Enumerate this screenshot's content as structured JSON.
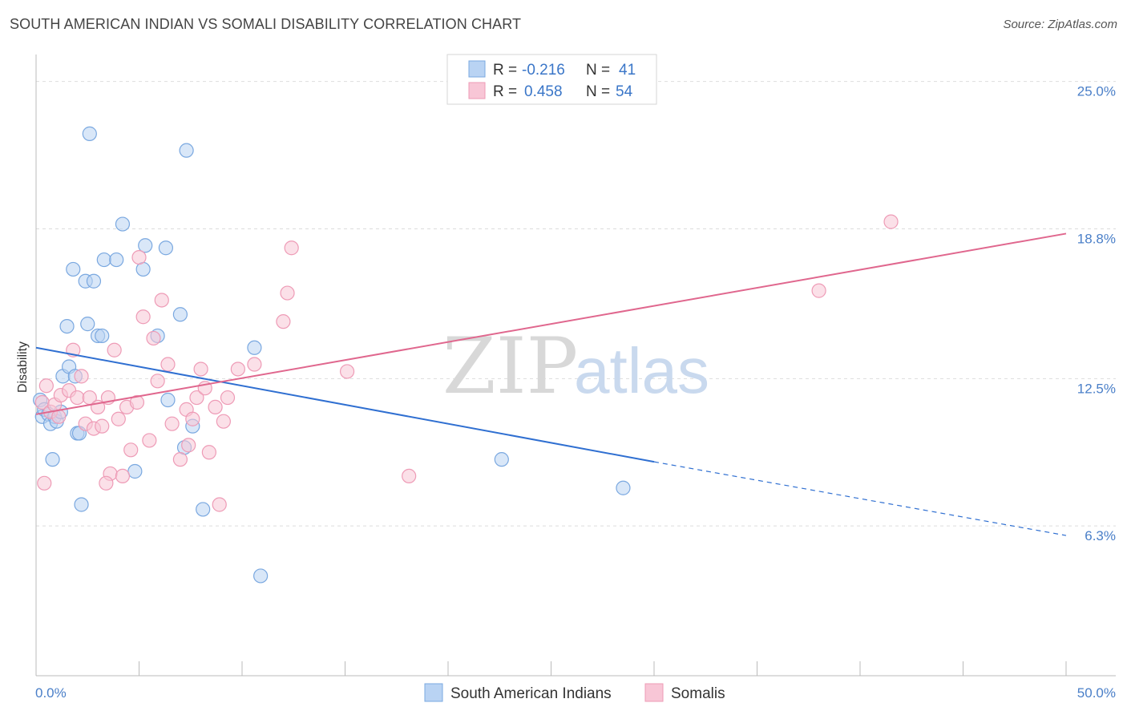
{
  "title": "SOUTH AMERICAN INDIAN VS SOMALI DISABILITY CORRELATION CHART",
  "source": "Source: ZipAtlas.com",
  "colors": {
    "blue_fill": "#b9d3f3",
    "blue_stroke": "#7aa8e0",
    "blue_line": "#2f6fd1",
    "pink_fill": "#f8c6d6",
    "pink_stroke": "#ee9bb6",
    "pink_line": "#e0678e",
    "grid": "#dddddd",
    "tick_text": "#4a7fc8"
  },
  "legend": {
    "rows": [
      {
        "r_label": "R =",
        "r_value": "-0.216",
        "n_label": "N =",
        "n_value": "41"
      },
      {
        "r_label": "R =",
        "r_value": "0.458",
        "n_label": "N =",
        "n_value": "54"
      }
    ]
  },
  "watermark": {
    "zip": "ZIP",
    "atlas": "atlas"
  },
  "chart_data": {
    "type": "scatter",
    "xlabel": "",
    "ylabel": "Disability",
    "xlim": [
      0,
      50
    ],
    "ylim": [
      0,
      26
    ],
    "x_tick_labels": [
      "0.0%",
      "50.0%"
    ],
    "y_ticks": [
      6.3,
      12.5,
      18.8,
      25.0
    ],
    "y_tick_labels": [
      "6.3%",
      "12.5%",
      "18.8%",
      "25.0%"
    ],
    "grid": true,
    "legend_position": "top-center",
    "series": [
      {
        "name": "South American Indians",
        "color": "#b9d3f3",
        "points": [
          [
            0.2,
            11.6
          ],
          [
            0.3,
            10.9
          ],
          [
            0.4,
            11.2
          ],
          [
            0.6,
            11.0
          ],
          [
            0.7,
            10.6
          ],
          [
            0.8,
            9.1
          ],
          [
            0.9,
            10.9
          ],
          [
            1.0,
            10.7
          ],
          [
            1.2,
            11.1
          ],
          [
            1.3,
            12.6
          ],
          [
            1.5,
            14.7
          ],
          [
            1.6,
            13.0
          ],
          [
            1.8,
            17.1
          ],
          [
            1.9,
            12.6
          ],
          [
            2.0,
            10.2
          ],
          [
            2.1,
            10.2
          ],
          [
            2.2,
            7.2
          ],
          [
            2.4,
            16.6
          ],
          [
            2.5,
            14.8
          ],
          [
            2.6,
            22.8
          ],
          [
            2.8,
            16.6
          ],
          [
            3.0,
            14.3
          ],
          [
            3.2,
            14.3
          ],
          [
            3.3,
            17.5
          ],
          [
            3.9,
            17.5
          ],
          [
            4.2,
            19.0
          ],
          [
            4.8,
            8.6
          ],
          [
            5.2,
            17.1
          ],
          [
            5.3,
            18.1
          ],
          [
            5.9,
            14.3
          ],
          [
            6.3,
            18.0
          ],
          [
            6.4,
            11.6
          ],
          [
            7.0,
            15.2
          ],
          [
            7.2,
            9.6
          ],
          [
            7.3,
            22.1
          ],
          [
            7.6,
            10.5
          ],
          [
            8.1,
            7.0
          ],
          [
            10.6,
            13.8
          ],
          [
            10.9,
            4.2
          ],
          [
            22.6,
            9.1
          ],
          [
            28.5,
            7.9
          ]
        ]
      },
      {
        "name": "Somalis",
        "color": "#f8c6d6",
        "points": [
          [
            0.3,
            11.5
          ],
          [
            0.5,
            12.2
          ],
          [
            0.7,
            11.1
          ],
          [
            0.9,
            11.4
          ],
          [
            1.1,
            10.9
          ],
          [
            1.2,
            11.8
          ],
          [
            1.6,
            12.0
          ],
          [
            1.8,
            13.7
          ],
          [
            2.0,
            11.7
          ],
          [
            2.2,
            12.6
          ],
          [
            2.4,
            10.6
          ],
          [
            2.6,
            11.7
          ],
          [
            2.8,
            10.4
          ],
          [
            3.0,
            11.3
          ],
          [
            3.2,
            10.5
          ],
          [
            3.5,
            11.7
          ],
          [
            3.6,
            8.5
          ],
          [
            3.8,
            13.7
          ],
          [
            4.0,
            10.8
          ],
          [
            4.2,
            8.4
          ],
          [
            4.4,
            11.3
          ],
          [
            4.6,
            9.5
          ],
          [
            4.9,
            11.5
          ],
          [
            5.0,
            17.6
          ],
          [
            5.2,
            15.1
          ],
          [
            5.5,
            9.9
          ],
          [
            5.7,
            14.2
          ],
          [
            5.9,
            12.4
          ],
          [
            6.1,
            15.8
          ],
          [
            6.4,
            13.1
          ],
          [
            6.6,
            10.6
          ],
          [
            7.0,
            9.1
          ],
          [
            7.3,
            11.2
          ],
          [
            7.4,
            9.7
          ],
          [
            7.6,
            10.8
          ],
          [
            7.8,
            11.7
          ],
          [
            8.0,
            12.9
          ],
          [
            8.2,
            12.1
          ],
          [
            8.4,
            9.4
          ],
          [
            8.7,
            11.3
          ],
          [
            8.9,
            7.2
          ],
          [
            9.1,
            10.7
          ],
          [
            9.3,
            11.7
          ],
          [
            9.8,
            12.9
          ],
          [
            10.6,
            13.1
          ],
          [
            12.0,
            14.9
          ],
          [
            12.2,
            16.1
          ],
          [
            12.4,
            18.0
          ],
          [
            15.1,
            12.8
          ],
          [
            18.1,
            8.4
          ],
          [
            0.4,
            8.1
          ],
          [
            38.0,
            16.2
          ],
          [
            41.5,
            19.1
          ],
          [
            3.4,
            8.1
          ]
        ]
      }
    ],
    "trend_lines": [
      {
        "series": "South American Indians",
        "x_start": 0,
        "y_start": 13.8,
        "x_solid_end": 30,
        "y_solid_end": 9.0,
        "x_dash_end": 50,
        "y_dash_end": 5.9
      },
      {
        "series": "Somalis",
        "x_start": 0,
        "y_start": 11.0,
        "x_end": 50,
        "y_end": 18.6
      }
    ]
  }
}
